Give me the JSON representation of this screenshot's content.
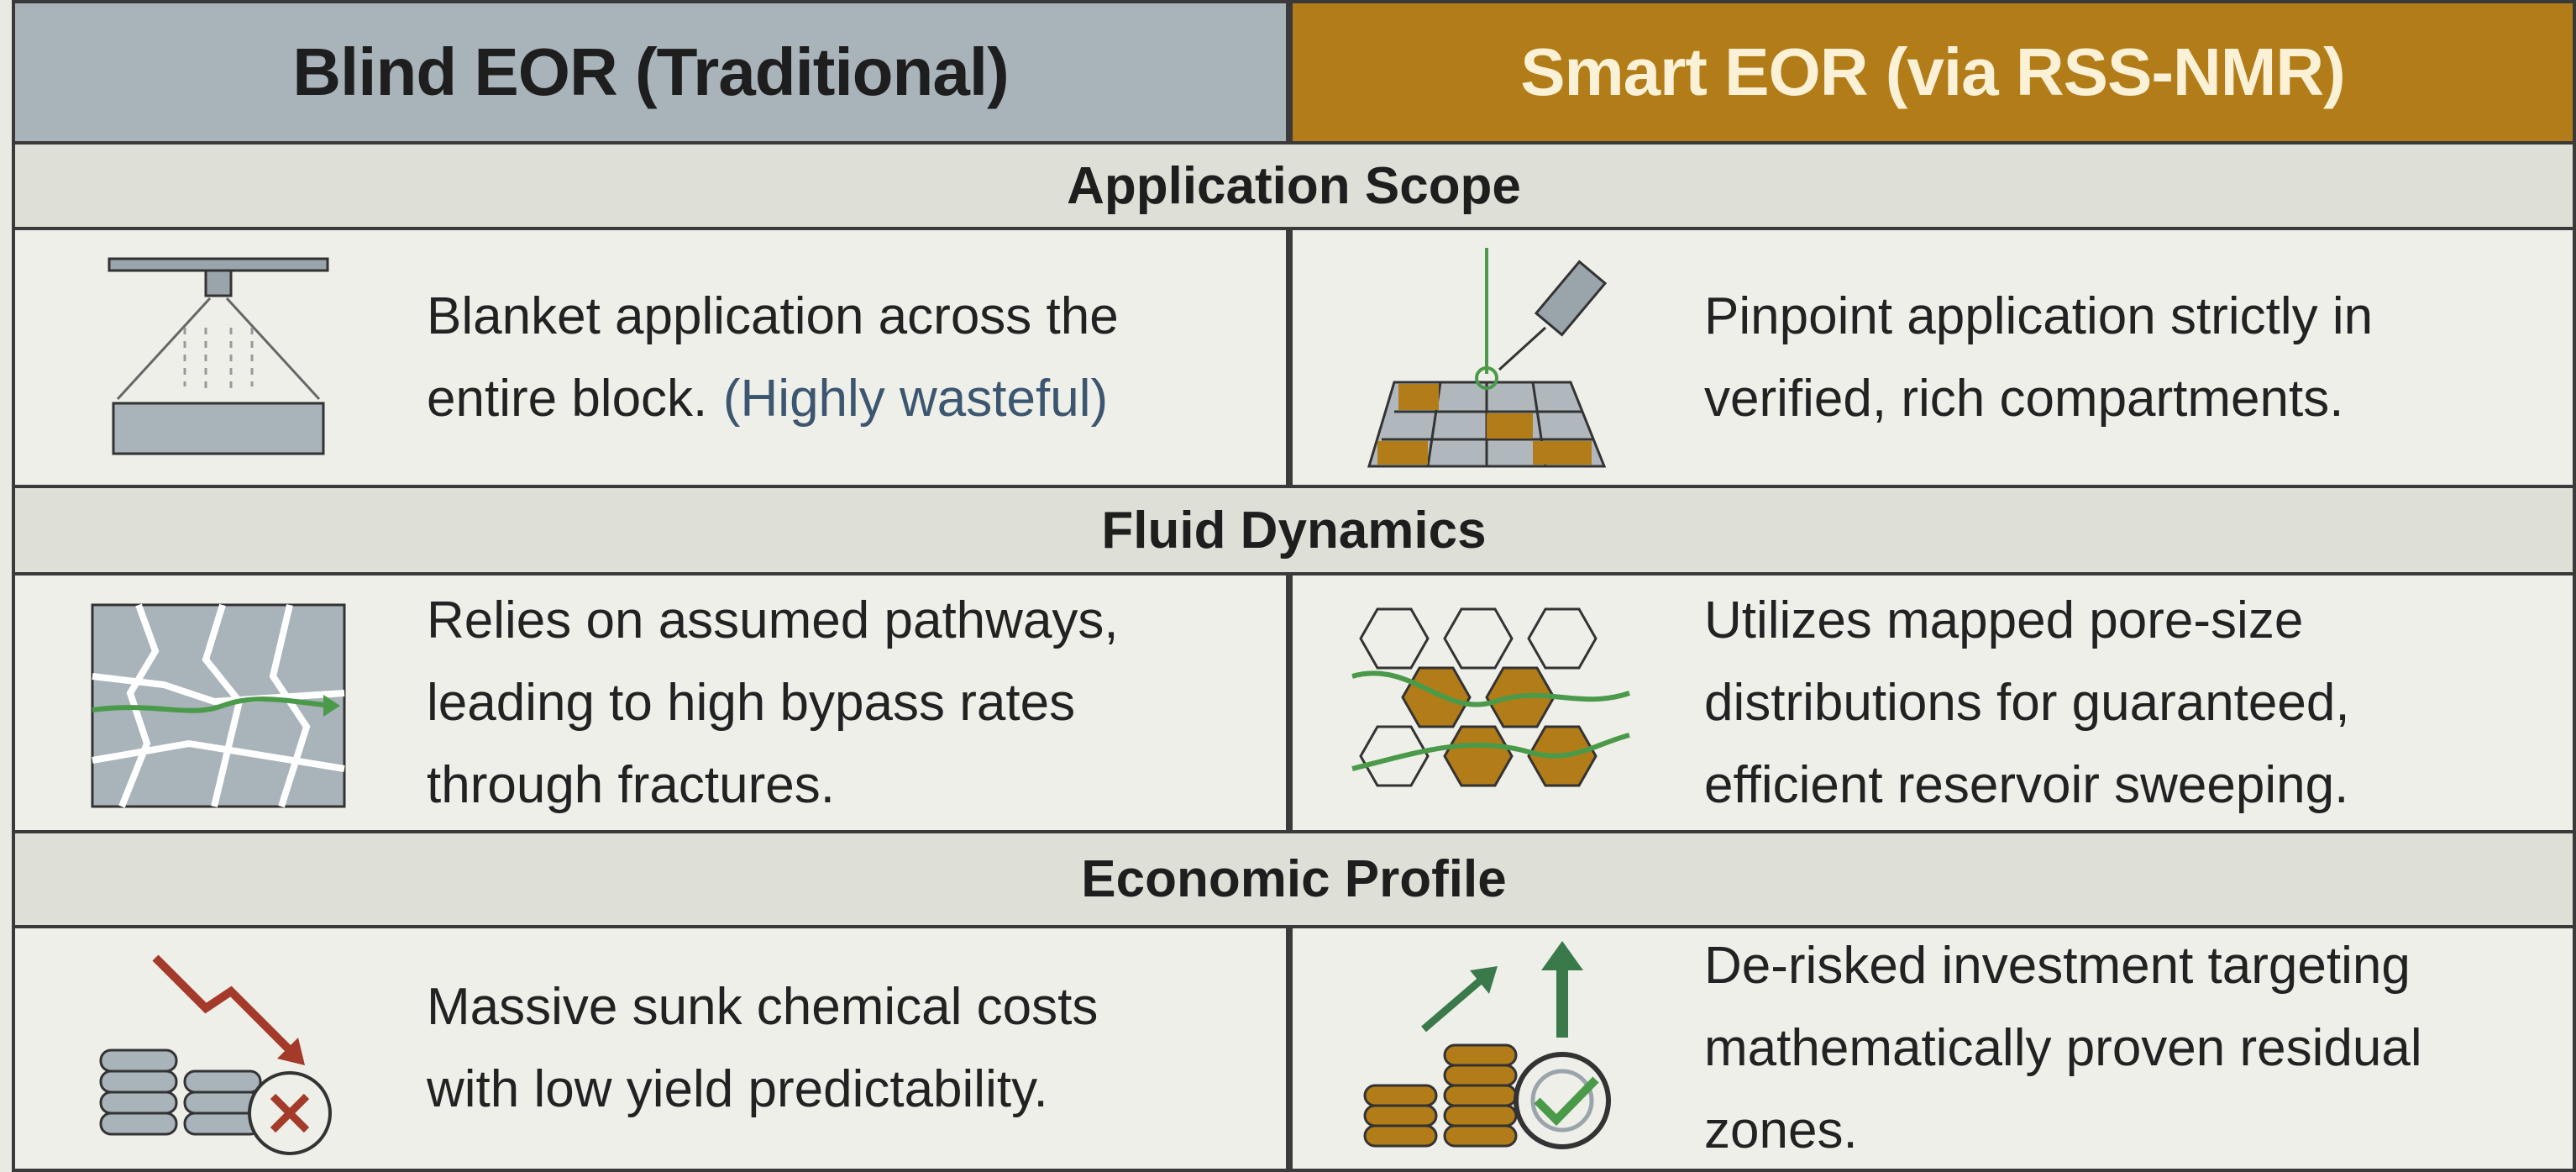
{
  "header": {
    "left": "Blind EOR (Traditional)",
    "right": "Smart EOR (via RSS-NMR)"
  },
  "sections": [
    {
      "title": "Application Scope",
      "left": {
        "lines": [
          "Blanket application across the",
          "entire block."
        ],
        "note": "(Highly wasteful)"
      },
      "right": {
        "lines": [
          "Pinpoint application strictly in",
          "verified, rich compartments."
        ]
      }
    },
    {
      "title": "Fluid Dynamics",
      "left": {
        "lines": [
          "Relies on assumed pathways,",
          "leading to high bypass rates",
          "through fractures."
        ]
      },
      "right": {
        "lines": [
          "Utilizes mapped pore-size",
          "distributions for guaranteed,",
          "efficient reservoir sweeping."
        ]
      }
    },
    {
      "title": "Economic Profile",
      "left": {
        "lines": [
          "Massive sunk chemical costs",
          "with low yield predictability."
        ]
      },
      "right": {
        "lines": [
          "De-risked investment targeting",
          "mathematically proven residual",
          "zones."
        ]
      }
    }
  ]
}
